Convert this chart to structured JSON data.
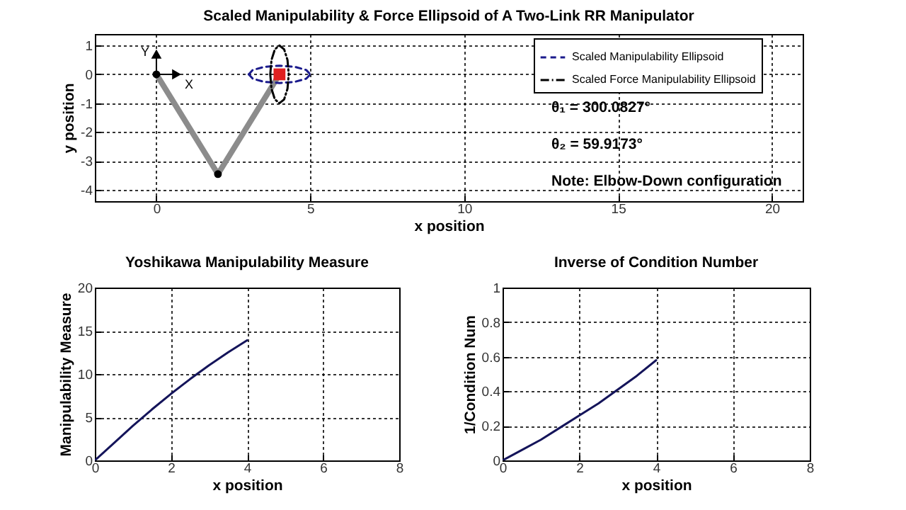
{
  "chart_data": [
    {
      "type": "line",
      "title": "Scaled Manipulability & Force Ellipsoid of A Two-Link RR Manipulator",
      "xlabel": "x position",
      "ylabel": "y position",
      "xlim": [
        -2,
        21
      ],
      "ylim": [
        -4.4,
        1.4
      ],
      "xticks": [
        0,
        5,
        10,
        15,
        20
      ],
      "yticks": [
        -4,
        -3,
        -2,
        -1,
        0,
        1
      ],
      "grid": true,
      "legend": "top right",
      "series": [
        {
          "type": "line",
          "color": "#8c8c8c",
          "x": [
            0,
            2,
            4
          ],
          "values": [
            0,
            -3.46,
            0
          ]
        },
        {
          "type": "scatter",
          "marker": "circle",
          "color": "#000000",
          "x": [
            0,
            2
          ],
          "values": [
            0,
            -3.46
          ]
        },
        {
          "type": "line",
          "name": "Scaled Manipulability Ellipsoid",
          "color": "#1a1a8c",
          "line_style": "dashed",
          "x": [
            3,
            3.13,
            3.5,
            4,
            4.5,
            4.87,
            5
          ],
          "values": [
            0,
            0.15,
            0.26,
            0.3,
            0.26,
            0.15,
            0
          ]
        },
        {
          "type": "line",
          "color": "#1a1a8c",
          "line_style": "dashed",
          "x": [
            3,
            3.13,
            3.5,
            4,
            4.5,
            4.87,
            5
          ],
          "values": [
            0,
            -0.15,
            -0.26,
            -0.3,
            -0.26,
            -0.15,
            0
          ]
        },
        {
          "type": "line",
          "name": "Scaled Force Manipulability Ellipsoid",
          "color": "#000000",
          "line_style": "dotted",
          "x": [
            3.7,
            3.74,
            3.85,
            4,
            4.15,
            4.26,
            4.3,
            null,
            3.7,
            3.74,
            3.85,
            4,
            4.15,
            4.26,
            4.3
          ],
          "values": [
            0,
            0.5,
            0.87,
            1,
            0.87,
            0.5,
            0,
            null,
            0,
            -0.5,
            -0.87,
            -1,
            -0.87,
            -0.5,
            0
          ]
        },
        {
          "type": "scatter",
          "marker": "square",
          "color": "#e02020",
          "x": [
            4
          ],
          "values": [
            0
          ]
        }
      ],
      "annotations": [
        "X",
        "Y",
        "θ₁ = 300.0827°",
        "θ₂ = 59.9173°",
        "Note: Elbow-Down configuration"
      ]
    },
    {
      "type": "line",
      "title": "Yoshikawa Manipulability Measure",
      "xlabel": "x position",
      "ylabel": "Manipulability Measure",
      "xlim": [
        0,
        8
      ],
      "ylim": [
        0,
        20
      ],
      "xticks": [
        0,
        2,
        4,
        6,
        8
      ],
      "yticks": [
        0,
        5,
        10,
        15,
        20
      ],
      "grid": true,
      "series": [
        {
          "type": "line",
          "color": "#14145a",
          "x": [
            0,
            0.5,
            1,
            1.5,
            2,
            2.5,
            3,
            3.5,
            4
          ],
          "values": [
            0,
            2,
            4,
            5.9,
            7.7,
            9.4,
            11,
            12.5,
            13.9
          ]
        }
      ]
    },
    {
      "type": "line",
      "title": "Inverse of Condition Number",
      "xlabel": "x position",
      "ylabel": "1/Condition Num",
      "xlim": [
        0,
        8
      ],
      "ylim": [
        0,
        1
      ],
      "xticks": [
        0,
        2,
        4,
        6,
        8
      ],
      "yticks": [
        0,
        0.2,
        0.4,
        0.6,
        0.8,
        1
      ],
      "grid": true,
      "series": [
        {
          "type": "line",
          "color": "#14145a",
          "x": [
            0,
            0.5,
            1,
            1.5,
            2,
            2.5,
            3,
            3.5,
            4
          ],
          "values": [
            0,
            0.06,
            0.12,
            0.19,
            0.26,
            0.33,
            0.41,
            0.49,
            0.58
          ]
        }
      ]
    }
  ]
}
